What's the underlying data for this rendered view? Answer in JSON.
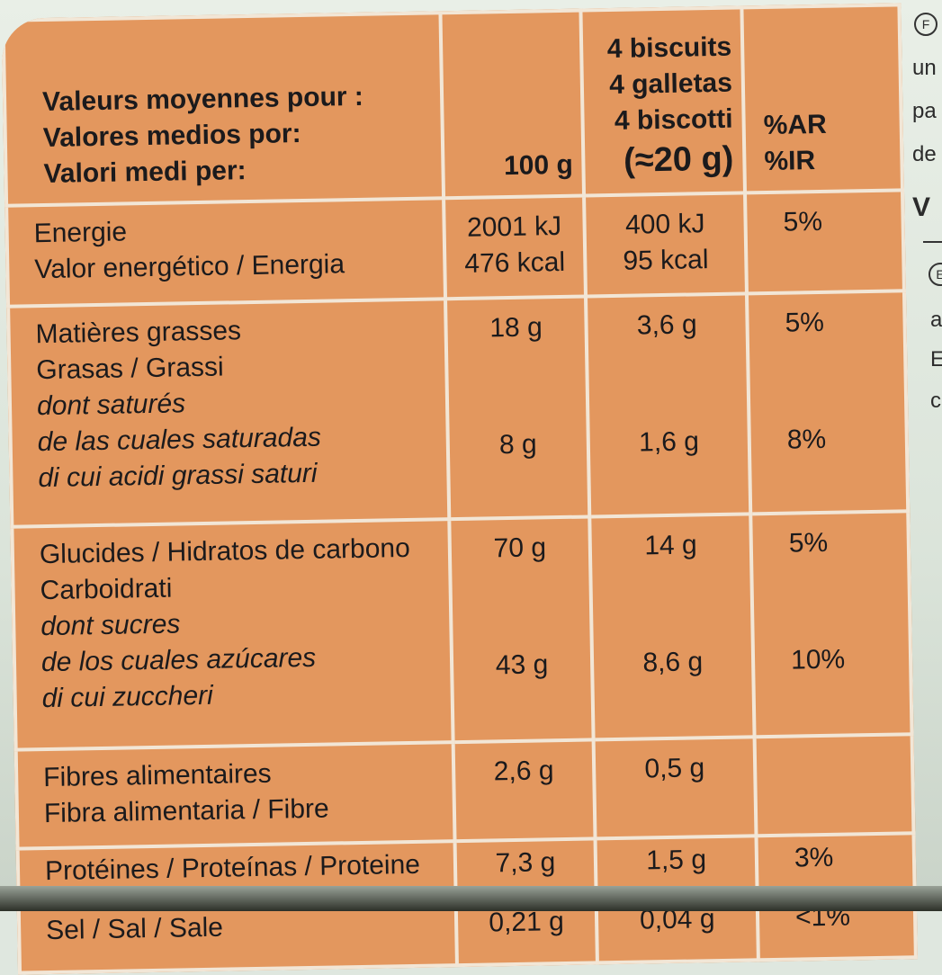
{
  "header": {
    "label_lines": [
      "Valeurs moyennes pour :",
      "Valores medios por:",
      "Valori medi per:"
    ],
    "col_100g": "100 g",
    "portion_lines": [
      "4 biscuits",
      "4 galletas",
      "4 biscotti"
    ],
    "portion_weight": "(≈20 g)",
    "ar_lines": [
      "%AR",
      "%IR"
    ]
  },
  "rows": {
    "energy": {
      "label_lines": [
        "Energie",
        "Valor energético / Energia"
      ],
      "per100": [
        "2001 kJ",
        "476 kcal"
      ],
      "portion": [
        "400 kJ",
        "95 kcal"
      ],
      "ar": "5%"
    },
    "fat": {
      "label_lines": [
        "Matières grasses",
        "Grasas / Grassi"
      ],
      "sub_lines": [
        "dont saturés",
        "de las cuales saturadas",
        "di cui acidi grassi saturi"
      ],
      "per100": "18 g",
      "portion": "3,6 g",
      "ar": "5%",
      "sat_per100": "8 g",
      "sat_portion": "1,6 g",
      "sat_ar": "8%"
    },
    "carb": {
      "label_lines": [
        "Glucides / Hidratos de carbono",
        "Carboidrati"
      ],
      "sub_lines": [
        "dont sucres",
        "de los cuales azúcares",
        "di cui zuccheri"
      ],
      "per100": "70 g",
      "portion": "14 g",
      "ar": "5%",
      "sugar_per100": "43 g",
      "sugar_portion": "8,6 g",
      "sugar_ar": "10%"
    },
    "fibre": {
      "label_lines": [
        "Fibres alimentaires",
        "Fibra alimentaria / Fibre"
      ],
      "per100": "2,6 g",
      "portion": "0,5 g",
      "ar": ""
    },
    "protein": {
      "label": "Protéines / Proteínas / Proteine",
      "per100": "7,3 g",
      "portion": "1,5 g",
      "ar": "3%"
    },
    "salt": {
      "label": "Sel / Sal / Sale",
      "per100": "0,21 g",
      "portion": "0,04 g",
      "ar": "<1%"
    }
  },
  "side": {
    "circle_f": "F",
    "lines": [
      "un",
      "pa",
      "de",
      "V",
      "a",
      "E",
      "c"
    ],
    "circle_e": "E"
  },
  "colors": {
    "table": "#e3975e",
    "grid": "#f2e6d6",
    "text": "#1b1a1c"
  }
}
